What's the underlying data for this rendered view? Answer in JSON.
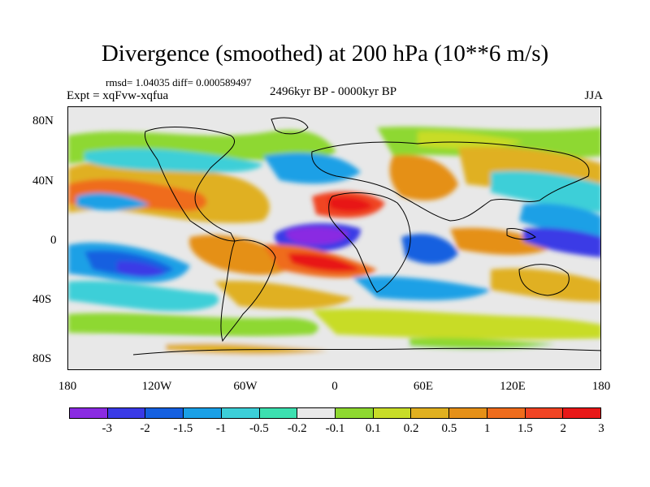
{
  "figure": {
    "title": "Divergence (smoothed) at 200 hPa (10**6 m/s)",
    "stats": "rmsd= 1.04035 diff= 0.000589497",
    "experiment": "Expt = xqFvw-xqfua",
    "period": "2496kyr BP - 0000kyr BP",
    "season": "JJA"
  },
  "axes": {
    "lat_labels": [
      "80N",
      "40N",
      "0",
      "40S",
      "80S"
    ],
    "lon_labels": [
      "180",
      "120W",
      "60W",
      "0",
      "60E",
      "120E",
      "180"
    ]
  },
  "colorbar": {
    "colors": [
      "#8a2be2",
      "#3a3ae6",
      "#1560e0",
      "#1aa0e6",
      "#3ccfd8",
      "#3ce0b0",
      "#e8e8e8",
      "#8ed830",
      "#c8dc28",
      "#e0b020",
      "#e59018",
      "#ef6c1c",
      "#f04424",
      "#e81818"
    ],
    "labels": [
      "-3",
      "-2",
      "-1.5",
      "-1",
      "-0.5",
      "-0.2",
      "-0.1",
      "0.1",
      "0.2",
      "0.5",
      "1",
      "1.5",
      "2",
      "3"
    ]
  }
}
